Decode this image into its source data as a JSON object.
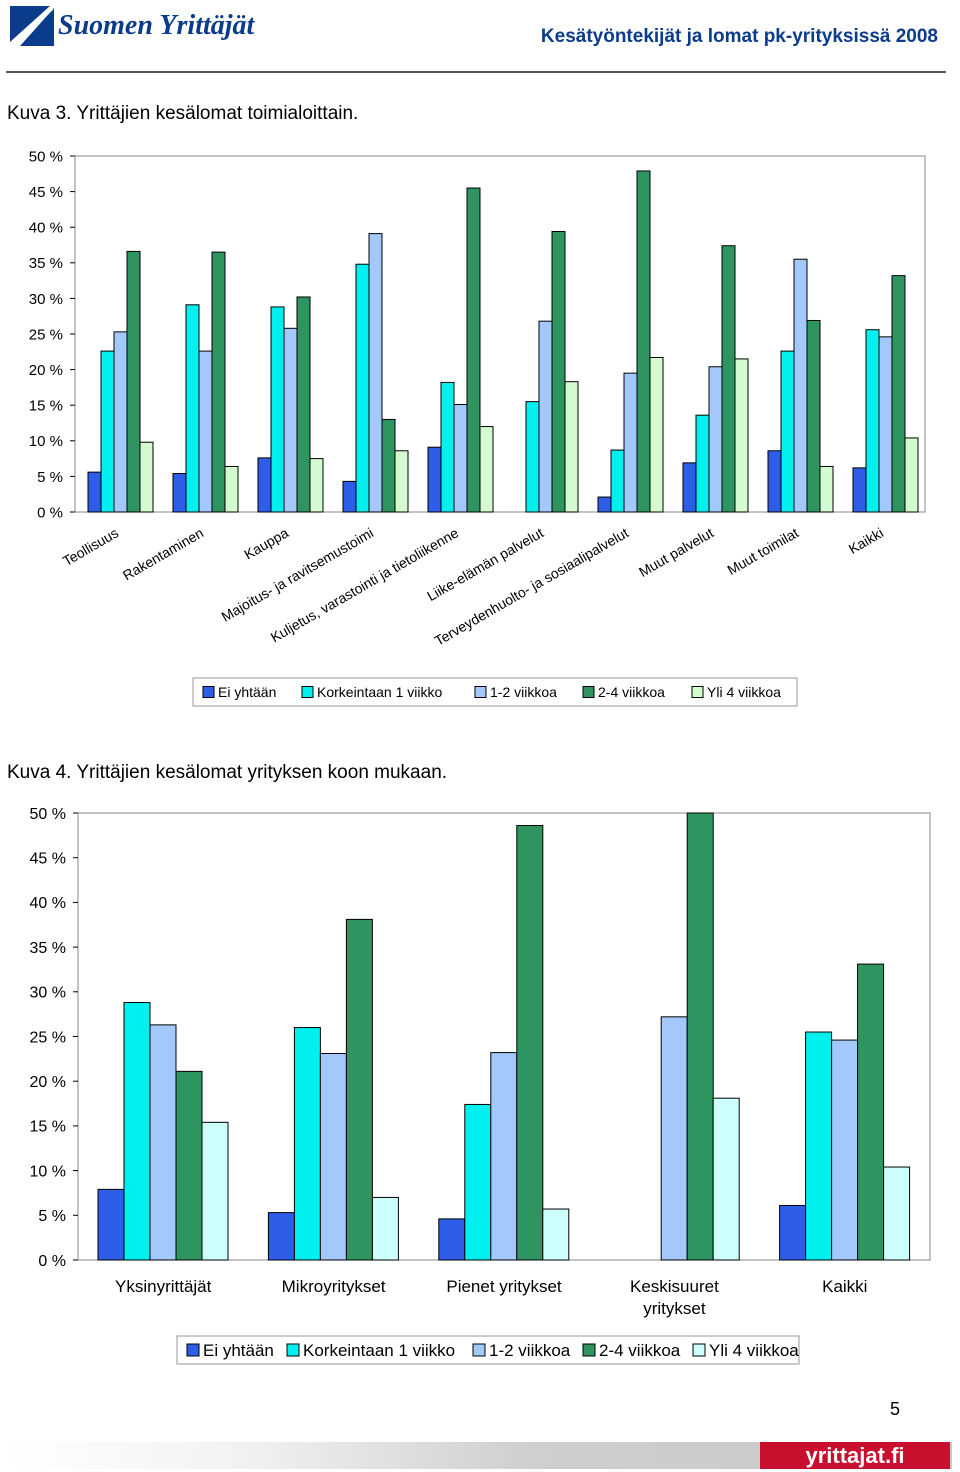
{
  "header": {
    "brand": "Suomen Yrittäjät",
    "title": "Kesätyöntekijät ja lomat pk-yrityksissä 2008"
  },
  "colors": {
    "ei_yhtaan": "#2e5de8",
    "korkeintaan": "#00f0f0",
    "viikkoa12": "#a3c8fc",
    "viikkoa24": "#2e9560",
    "yli4": "#d4fbd0",
    "yli4_chart2": "#cdfefe",
    "brand_blue": "#0b3c8c",
    "footer_red": "#c8102e"
  },
  "figure3": {
    "caption": "Kuva 3. Yrittäjien kesälomat toimialoittain.",
    "chart_data": {
      "type": "bar",
      "title": "",
      "categories": [
        "Teollisuus",
        "Rakentaminen",
        "Kauppa",
        "Majoitus- ja ravitsemustoimi",
        "Kuljetus, varastointi ja tietoliikenne",
        "Liike-elämän palvelut",
        "Terveydenhuolto- ja sosiaalipalvelut",
        "Muut palvelut",
        "Muut toimilat",
        "Kaikki"
      ],
      "series": [
        {
          "name": "Ei yhtään",
          "color_key": "ei_yhtaan",
          "values": [
            5.6,
            5.4,
            7.6,
            4.3,
            9.1,
            0,
            2.1,
            6.9,
            8.6,
            6.2
          ]
        },
        {
          "name": "Korkeintaan 1 viikko",
          "color_key": "korkeintaan",
          "values": [
            22.6,
            29.1,
            28.8,
            34.8,
            18.2,
            15.5,
            8.7,
            13.6,
            22.6,
            25.6
          ]
        },
        {
          "name": "1-2 viikkoa",
          "color_key": "viikkoa12",
          "values": [
            25.3,
            22.6,
            25.8,
            39.1,
            15.1,
            26.8,
            19.5,
            20.4,
            35.5,
            24.6
          ]
        },
        {
          "name": "2-4 viikkoa",
          "color_key": "viikkoa24",
          "values": [
            36.6,
            36.5,
            30.2,
            13.0,
            45.5,
            39.4,
            47.9,
            37.4,
            26.9,
            33.2
          ]
        },
        {
          "name": "Yli 4 viikkoa",
          "color_key": "yli4",
          "values": [
            9.8,
            6.4,
            7.5,
            8.6,
            12.0,
            18.3,
            21.7,
            21.5,
            6.4,
            10.4
          ]
        }
      ],
      "ylim": [
        0,
        50
      ],
      "yticks": [
        "0 %",
        "5 %",
        "10 %",
        "15 %",
        "20 %",
        "25 %",
        "30 %",
        "35 %",
        "40 %",
        "45 %",
        "50 %"
      ],
      "xlabel": "",
      "ylabel": "",
      "legend": [
        "Ei yhtään",
        "Korkeintaan 1 viikko",
        "1-2 viikkoa",
        "2-4 viikkoa",
        "Yli 4 viikkoa"
      ],
      "legend_position": "bottom"
    }
  },
  "figure4": {
    "caption": "Kuva 4. Yrittäjien kesälomat yrityksen koon mukaan.",
    "chart_data": {
      "type": "bar",
      "title": "",
      "categories": [
        "Yksinyrittäjät",
        "Mikroyritykset",
        "Pienet yritykset",
        "Keskisuuret yritykset",
        "Kaikki"
      ],
      "series": [
        {
          "name": "Ei yhtään",
          "color_key": "ei_yhtaan",
          "values": [
            7.9,
            5.3,
            4.6,
            0,
            6.1
          ]
        },
        {
          "name": "Korkeintaan 1 viikko",
          "color_key": "korkeintaan",
          "values": [
            28.8,
            26.0,
            17.4,
            0,
            25.5
          ]
        },
        {
          "name": "1-2 viikkoa",
          "color_key": "viikkoa12",
          "values": [
            26.3,
            23.1,
            23.2,
            27.2,
            24.6
          ]
        },
        {
          "name": "2-4 viikkoa",
          "color_key": "viikkoa24",
          "values": [
            21.1,
            38.1,
            48.6,
            50.0,
            33.1
          ]
        },
        {
          "name": "Yli 4 viikkoa",
          "color_key": "yli4_chart2",
          "values": [
            15.4,
            7.0,
            5.7,
            18.1,
            10.4
          ]
        }
      ],
      "ylim": [
        0,
        50
      ],
      "yticks": [
        "0 %",
        "5 %",
        "10 %",
        "15 %",
        "20 %",
        "25 %",
        "30 %",
        "35 %",
        "40 %",
        "45 %",
        "50 %"
      ],
      "xlabel": "",
      "ylabel": "",
      "legend": [
        "Ei yhtään",
        "Korkeintaan 1 viikko",
        "1-2 viikkoa",
        "2-4 viikkoa",
        "Yli 4 viikkoa"
      ],
      "legend_position": "bottom"
    }
  },
  "footer": {
    "page_number": "5",
    "site": "yrittajat.fi"
  }
}
